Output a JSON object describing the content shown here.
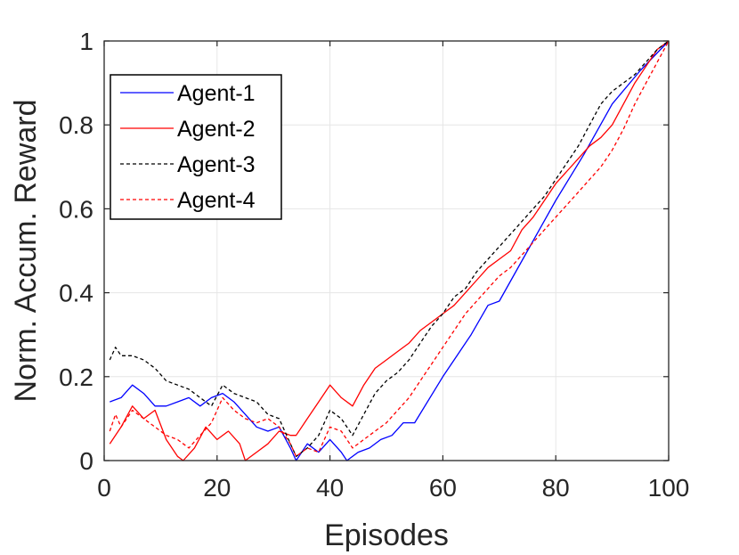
{
  "chart_data": {
    "type": "line",
    "xlabel": "Episodes",
    "ylabel": "Norm. Accum. Reward",
    "xlim": [
      0,
      100
    ],
    "ylim": [
      0,
      1
    ],
    "xticks": [
      0,
      20,
      40,
      60,
      80,
      100
    ],
    "yticks": [
      0,
      0.2,
      0.4,
      0.6,
      0.8,
      1
    ],
    "ytick_labels": [
      "0",
      "0.2",
      "0.4",
      "0.6",
      "0.8",
      "1"
    ],
    "grid": true,
    "legend_position": "top-left",
    "series": [
      {
        "name": "Agent-1",
        "color": "#0000ff",
        "dash": "solid",
        "x": [
          1,
          3,
          5,
          7,
          9,
          11,
          13,
          15,
          17,
          19,
          21,
          23,
          25,
          27,
          29,
          31,
          33,
          34,
          36,
          38,
          40,
          42,
          43,
          45,
          47,
          49,
          51,
          53,
          55,
          60,
          65,
          68,
          70,
          75,
          80,
          85,
          90,
          95,
          100
        ],
        "y": [
          0.14,
          0.15,
          0.18,
          0.16,
          0.13,
          0.13,
          0.14,
          0.15,
          0.13,
          0.15,
          0.16,
          0.14,
          0.11,
          0.08,
          0.07,
          0.08,
          0.03,
          0.0,
          0.04,
          0.02,
          0.05,
          0.02,
          0.0,
          0.02,
          0.03,
          0.05,
          0.06,
          0.09,
          0.09,
          0.2,
          0.3,
          0.37,
          0.38,
          0.5,
          0.62,
          0.73,
          0.85,
          0.93,
          1.0
        ]
      },
      {
        "name": "Agent-2",
        "color": "#ff0000",
        "dash": "solid",
        "x": [
          1,
          3,
          5,
          7,
          9,
          11,
          13,
          14,
          16,
          18,
          20,
          22,
          24,
          25,
          27,
          29,
          31,
          33,
          34,
          36,
          38,
          40,
          42,
          44,
          46,
          48,
          50,
          52,
          54,
          56,
          58,
          60,
          62,
          64,
          66,
          68,
          70,
          72,
          74,
          76,
          78,
          80,
          82,
          84,
          86,
          88,
          90,
          92,
          94,
          96,
          98,
          100
        ],
        "y": [
          0.04,
          0.08,
          0.13,
          0.1,
          0.12,
          0.05,
          0.01,
          0.0,
          0.03,
          0.08,
          0.05,
          0.07,
          0.04,
          0.0,
          0.02,
          0.04,
          0.07,
          0.06,
          0.06,
          0.1,
          0.14,
          0.18,
          0.15,
          0.13,
          0.18,
          0.22,
          0.24,
          0.26,
          0.28,
          0.31,
          0.33,
          0.35,
          0.37,
          0.4,
          0.43,
          0.46,
          0.48,
          0.5,
          0.55,
          0.58,
          0.62,
          0.66,
          0.69,
          0.72,
          0.75,
          0.77,
          0.8,
          0.85,
          0.9,
          0.94,
          0.98,
          1.0
        ]
      },
      {
        "name": "Agent-3",
        "color": "#000000",
        "dash": "dashed",
        "x": [
          1,
          2,
          3,
          5,
          7,
          9,
          11,
          13,
          15,
          17,
          19,
          21,
          23,
          25,
          27,
          29,
          31,
          33,
          34,
          36,
          38,
          40,
          42,
          44,
          46,
          48,
          50,
          52,
          54,
          56,
          58,
          60,
          62,
          64,
          66,
          68,
          70,
          72,
          74,
          76,
          78,
          80,
          82,
          84,
          86,
          88,
          90,
          92,
          94,
          96,
          98,
          100
        ],
        "y": [
          0.24,
          0.27,
          0.25,
          0.25,
          0.24,
          0.22,
          0.19,
          0.18,
          0.17,
          0.15,
          0.13,
          0.18,
          0.16,
          0.15,
          0.14,
          0.11,
          0.1,
          0.04,
          0.01,
          0.03,
          0.06,
          0.12,
          0.1,
          0.06,
          0.11,
          0.16,
          0.19,
          0.21,
          0.24,
          0.28,
          0.32,
          0.35,
          0.39,
          0.41,
          0.45,
          0.48,
          0.51,
          0.54,
          0.57,
          0.6,
          0.63,
          0.67,
          0.71,
          0.75,
          0.8,
          0.85,
          0.88,
          0.9,
          0.92,
          0.95,
          0.98,
          1.0
        ]
      },
      {
        "name": "Agent-4",
        "color": "#ff0000",
        "dash": "dashed",
        "x": [
          1,
          2,
          3,
          5,
          7,
          9,
          11,
          13,
          15,
          17,
          19,
          21,
          23,
          25,
          27,
          29,
          31,
          33,
          34,
          36,
          38,
          40,
          42,
          44,
          46,
          48,
          50,
          52,
          54,
          56,
          58,
          60,
          62,
          64,
          66,
          68,
          70,
          72,
          74,
          76,
          78,
          80,
          82,
          84,
          86,
          88,
          90,
          92,
          94,
          96,
          98,
          100
        ],
        "y": [
          0.07,
          0.11,
          0.08,
          0.12,
          0.1,
          0.08,
          0.06,
          0.05,
          0.03,
          0.06,
          0.09,
          0.15,
          0.12,
          0.1,
          0.09,
          0.1,
          0.08,
          0.04,
          0.01,
          0.03,
          0.02,
          0.08,
          0.07,
          0.03,
          0.05,
          0.07,
          0.09,
          0.12,
          0.15,
          0.19,
          0.23,
          0.27,
          0.31,
          0.35,
          0.38,
          0.41,
          0.44,
          0.46,
          0.49,
          0.52,
          0.55,
          0.58,
          0.61,
          0.64,
          0.67,
          0.7,
          0.74,
          0.79,
          0.85,
          0.9,
          0.95,
          1.0
        ]
      }
    ]
  }
}
